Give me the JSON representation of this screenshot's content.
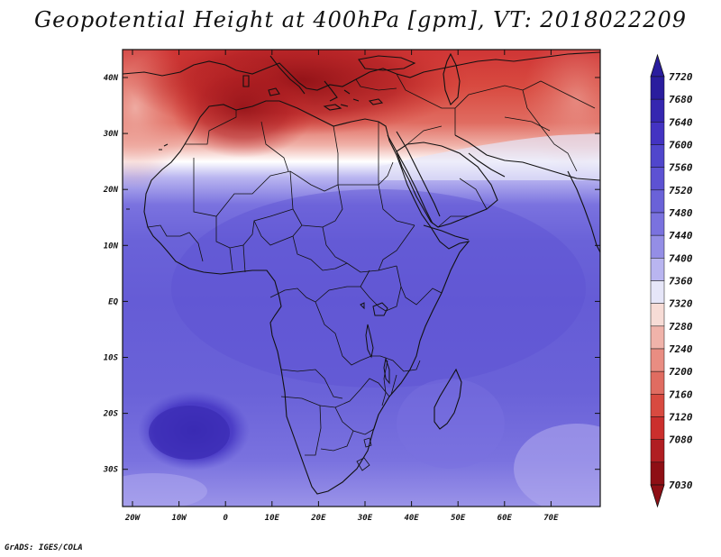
{
  "map": {
    "title": "Geopotential Height at 400hPa [gpm], VT: 2018022209",
    "credit": "GrADS: IGES/COLA",
    "lat_labels": [
      "40N",
      "30N",
      "20N",
      "10N",
      "EQ",
      "10S",
      "20S",
      "30S"
    ],
    "lon_labels": [
      "20W",
      "10W",
      "0",
      "10E",
      "20E",
      "30E",
      "40E",
      "50E",
      "60E",
      "70E"
    ],
    "colorbar": {
      "levels": [
        "7720",
        "7680",
        "7640",
        "7600",
        "7560",
        "7520",
        "7480",
        "7440",
        "7400",
        "7360",
        "7320",
        "7280",
        "7240",
        "7200",
        "7160",
        "7120",
        "7080",
        "7030"
      ],
      "colors": [
        "#2a1d9e",
        "#3527b0",
        "#4333c2",
        "#5046cc",
        "#5d52d3",
        "#6a62d8",
        "#7a72df",
        "#948ee6",
        "#b9b5f0",
        "#e6e6f8",
        "#f7dcd6",
        "#f0b3aa",
        "#e98d82",
        "#e06c61",
        "#d84a40",
        "#cb2f2d",
        "#b01e22",
        "#8e0f15"
      ]
    },
    "features": [
      "gulf-of-aden",
      "lake-victoria",
      "lake-tanganyika",
      "lake-malawi",
      "madagascar",
      "mediterranean-sea",
      "red-sea"
    ]
  }
}
